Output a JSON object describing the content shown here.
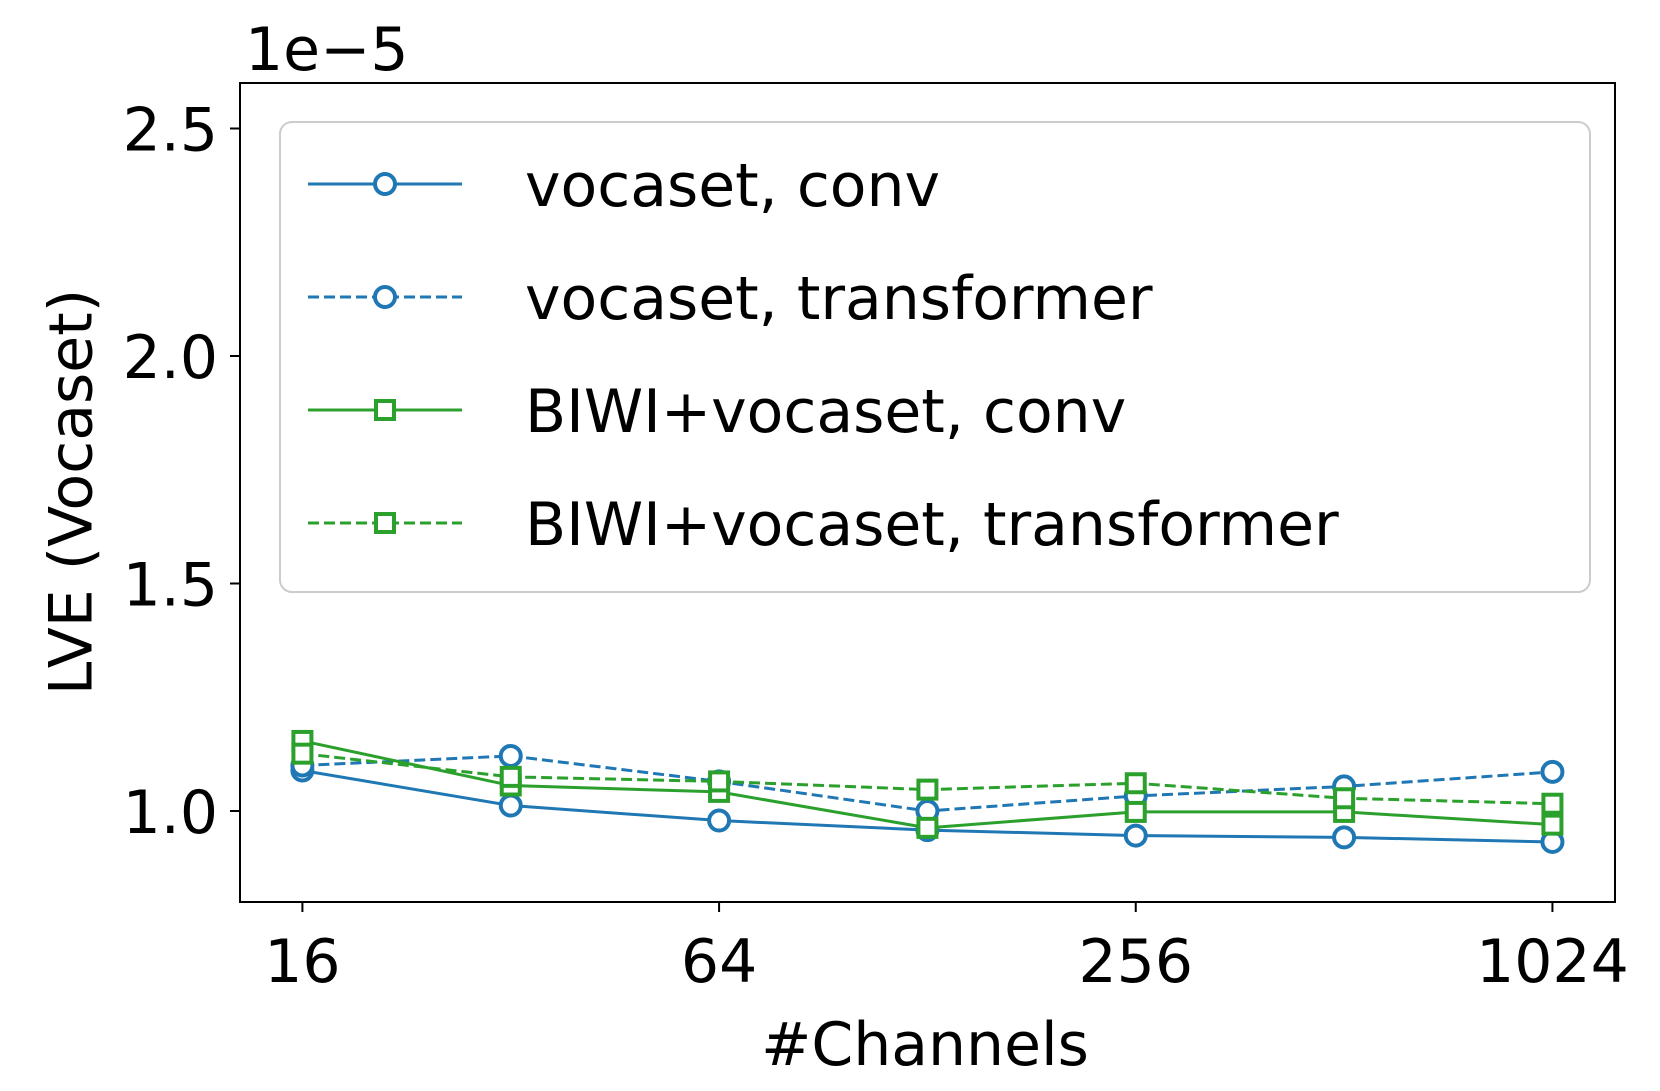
{
  "chart_data": {
    "type": "line",
    "y_label": "LVE (Vocaset)",
    "x_label": "#Channels",
    "offset_text": "1e−5",
    "x": [
      16,
      32,
      64,
      128,
      256,
      512,
      1024
    ],
    "x_log_base": 2,
    "xlim": [
      13,
      1261
    ],
    "xticks": [
      16,
      64,
      256,
      1024
    ],
    "ylim": [
      0.8,
      2.6
    ],
    "yticks": [
      {
        "value": 1,
        "label": "1.0"
      },
      {
        "value": 1.5,
        "label": "1.5"
      },
      {
        "value": 2,
        "label": "2.0"
      },
      {
        "value": 2.5,
        "label": "2.5"
      }
    ],
    "legend": "upper right",
    "series": [
      {
        "name": "vocaset, conv",
        "color": "#1f77b4",
        "dash": "solid",
        "marker": "circle",
        "values": [
          1.089,
          1.012,
          0.979,
          0.958,
          0.946,
          0.942,
          0.932
        ]
      },
      {
        "name": "vocaset, transformer",
        "color": "#1f77b4",
        "dash": "dashed",
        "marker": "circle",
        "values": [
          1.1,
          1.121,
          1.065,
          1.0,
          1.033,
          1.054,
          1.086
        ]
      },
      {
        "name": "BIWI+vocaset, conv",
        "color": "#2ca02c",
        "dash": "solid",
        "marker": "square",
        "values": [
          1.154,
          1.056,
          1.042,
          0.963,
          0.998,
          0.998,
          0.97
        ]
      },
      {
        "name": "BIWI+vocaset, transformer",
        "color": "#2ca02c",
        "dash": "dashed",
        "marker": "square",
        "values": [
          1.126,
          1.075,
          1.065,
          1.047,
          1.061,
          1.028,
          1.016
        ]
      }
    ]
  }
}
